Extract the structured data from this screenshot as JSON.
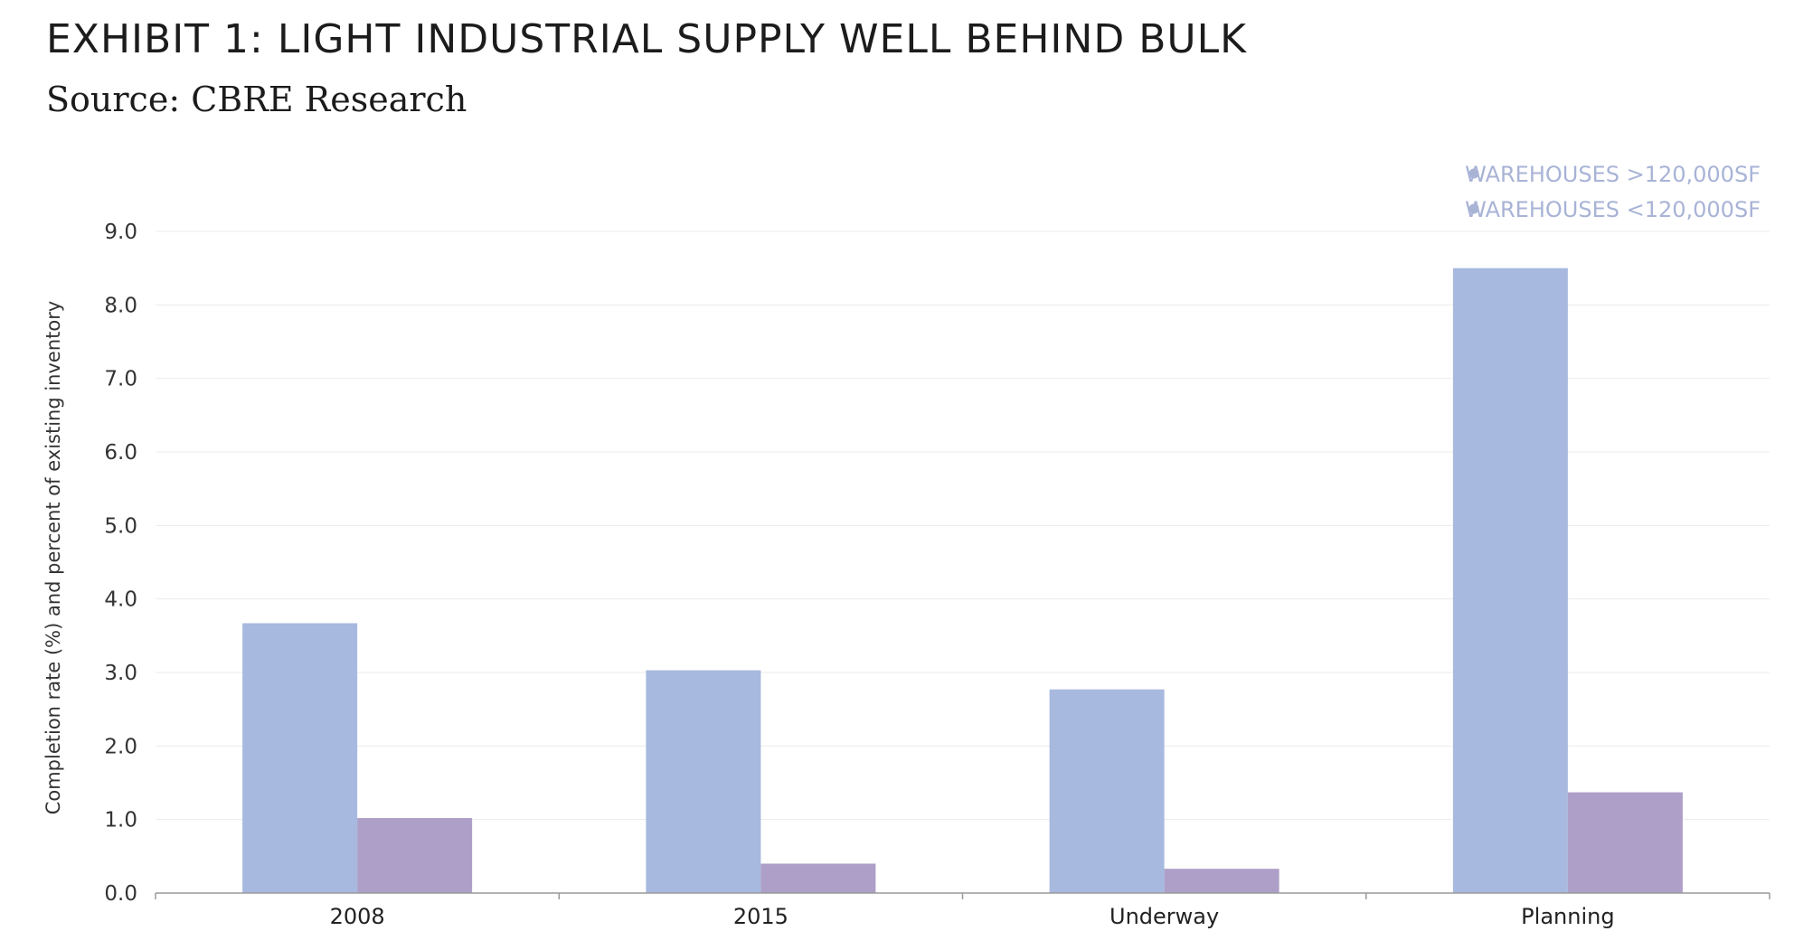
{
  "header": {
    "title": "EXHIBIT 1: LIGHT INDUSTRIAL SUPPLY WELL BEHIND BULK",
    "source": "Source: CBRE Research"
  },
  "chart_data": {
    "type": "bar",
    "categories": [
      "2008",
      "2015",
      "Underway",
      "Planning"
    ],
    "series": [
      {
        "name": "WAREHOUSES >120,000SF",
        "values": [
          3.67,
          3.03,
          2.77,
          8.5
        ],
        "color": "#a7b9de"
      },
      {
        "name": "WAREHOUSES <120,000SF",
        "values": [
          1.02,
          0.4,
          0.33,
          1.37
        ],
        "color": "#ad9fc8"
      }
    ],
    "ylabel": "Completion rate (%) and percent of existing inventory",
    "xlabel": "",
    "ylim": [
      0,
      9
    ],
    "yticks": [
      "0.0",
      "1.0",
      "2.0",
      "3.0",
      "4.0",
      "5.0",
      "6.0",
      "7.0",
      "8.0",
      "9.0"
    ],
    "grid": true,
    "legend_position": "top-right",
    "legend_color": "#a8b3d6"
  }
}
